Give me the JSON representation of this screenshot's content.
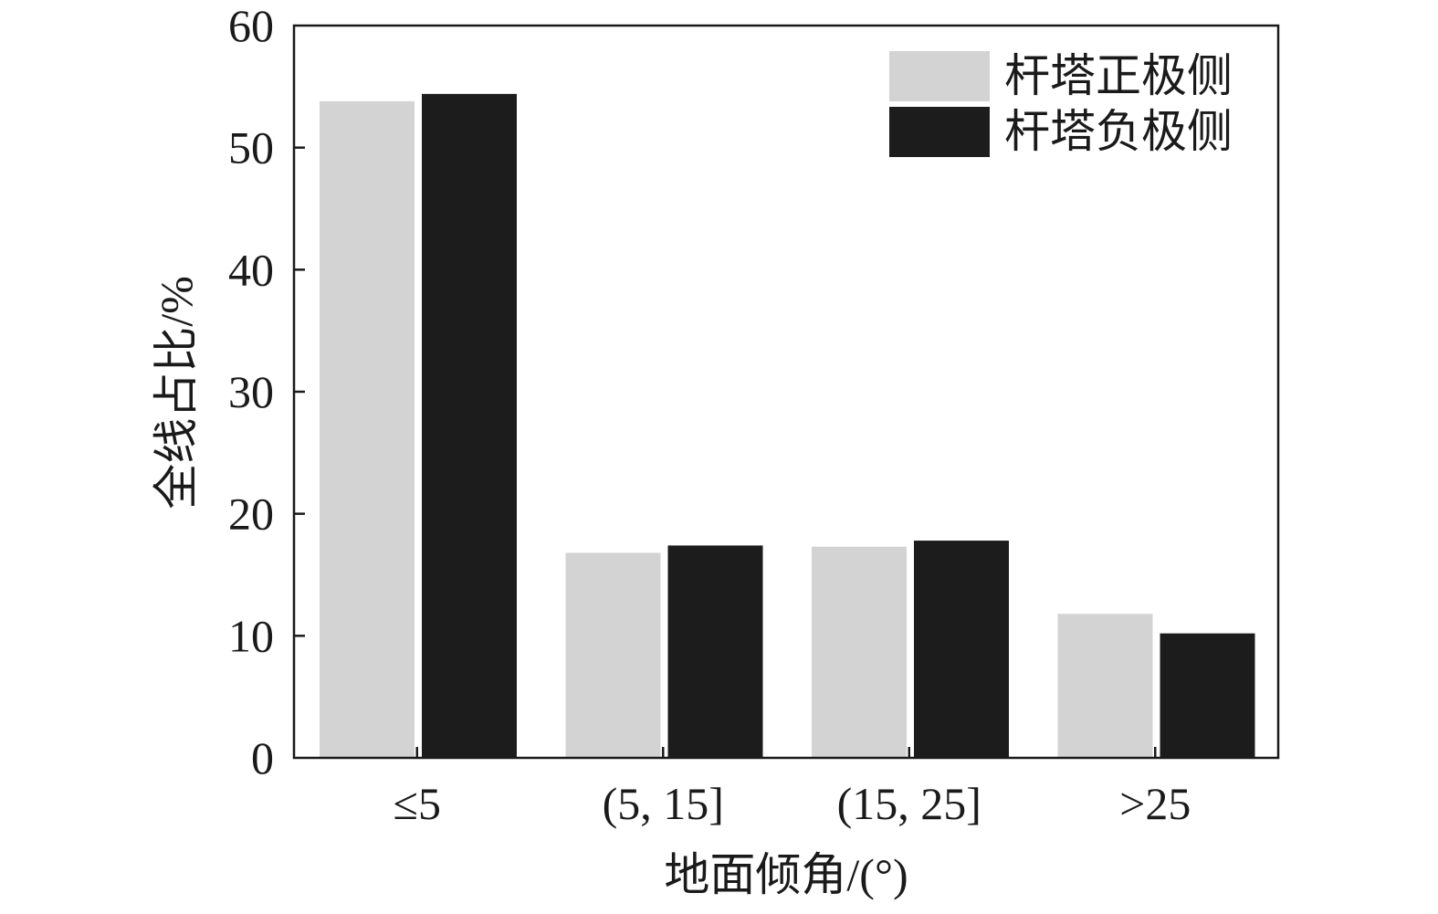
{
  "chart_data": {
    "type": "bar",
    "xlabel": "地面倾角/(°)",
    "ylabel": "全线占比/%",
    "categories": [
      "≤5",
      "(5, 15]",
      "(15, 25]",
      ">25"
    ],
    "series": [
      {
        "name": "杆塔正极侧",
        "values": [
          53.8,
          16.8,
          17.3,
          11.8
        ],
        "color": "#d3d3d3"
      },
      {
        "name": "杆塔负极侧",
        "values": [
          54.4,
          17.4,
          17.8,
          10.2
        ],
        "color": "#1c1c1c"
      }
    ],
    "ylim": [
      0,
      60
    ],
    "yticks": [
      0,
      10,
      20,
      30,
      40,
      50,
      60
    ],
    "grid": false,
    "legend_position": "top-right"
  }
}
